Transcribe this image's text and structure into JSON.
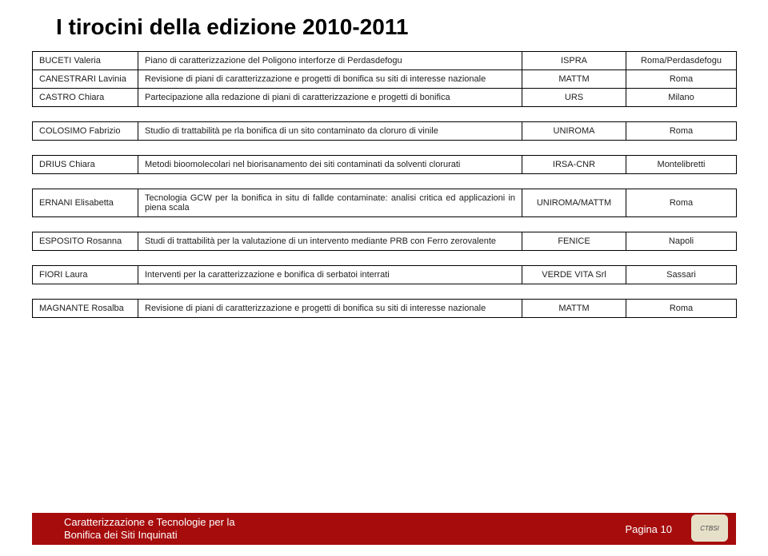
{
  "title": "I tirocini della edizione 2010-2011",
  "rows": [
    {
      "id": "buceti",
      "name": "BUCETI Valeria",
      "desc": "Piano di caratterizzazione del Poligono interforze di Perdasdefogu",
      "org": "ISPRA",
      "loc": "Roma/Perdasdefogu"
    },
    {
      "id": "canestrari",
      "name": "CANESTRARI Lavinia",
      "desc": "Revisione di piani di caratterizzazione e progetti di bonifica su siti di interesse nazionale",
      "org": "MATTM",
      "loc": "Roma"
    },
    {
      "id": "castro",
      "name": "CASTRO Chiara",
      "desc": "Partecipazione alla redazione di piani di caratterizzazione e progetti di bonifica",
      "org": "URS",
      "loc": "Milano"
    },
    {
      "id": "colosimo",
      "name": "COLOSIMO Fabrizio",
      "desc": "Studio di trattabilità pe rla bonifica di un sito contaminato da cloruro di vinile",
      "org": "UNIROMA",
      "loc": "Roma"
    },
    {
      "id": "drius",
      "name": "DRIUS Chiara",
      "desc": "Metodi bioomolecolari nel biorisanamento dei siti contaminati da solventi clorurati",
      "org": "IRSA-CNR",
      "loc": "Montelibretti"
    },
    {
      "id": "ernani",
      "name": "ERNANI Elisabetta",
      "desc": "Tecnologia GCW per la bonifica in situ di fallde contaminate: analisi critica ed applicazioni in piena scala",
      "org": "UNIROMA/MATTM",
      "loc": "Roma"
    },
    {
      "id": "esposito",
      "name": "ESPOSITO Rosanna",
      "desc": "Studi di trattabilità per la valutazione di un intervento mediante PRB con Ferro zerovalente",
      "org": "FENICE",
      "loc": "Napoli"
    },
    {
      "id": "fiori",
      "name": "FIORI Laura",
      "desc": "Interventi per la caratterizzazione e bonifica di serbatoi interrati",
      "org": "VERDE VITA Srl",
      "loc": "Sassari"
    },
    {
      "id": "magnante",
      "name": "MAGNANTE Rosalba",
      "desc": "Revisione di piani di caratterizzazione e progetti di bonifica su siti di interesse nazionale",
      "org": "MATTM",
      "loc": "Roma"
    }
  ],
  "footer": {
    "title_line1": "Caratterizzazione e Tecnologie per la",
    "title_line2": "Bonifica dei Siti Inquinati",
    "page_label": "Pagina 10",
    "logo_text": "CTBSI"
  },
  "colors": {
    "footer_bg": "#a60c0c",
    "border": "#000000",
    "text": "#212121",
    "footer_text": "#ffffff"
  }
}
